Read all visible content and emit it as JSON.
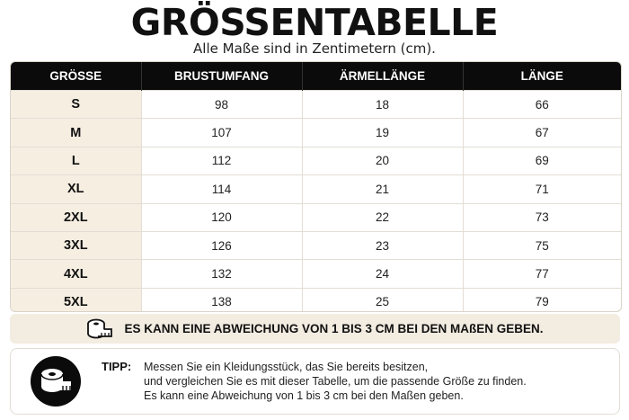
{
  "header": {
    "title": "GRÖSSENTABELLE",
    "subtitle": "Alle Maße sind in Zentimetern (cm)."
  },
  "table": {
    "columns": [
      "GRÖSSE",
      "BRUSTUMFANG",
      "ÄRMELLÄNGE",
      "LÄNGE"
    ],
    "rows": [
      [
        "S",
        "98",
        "18",
        "66"
      ],
      [
        "M",
        "107",
        "19",
        "67"
      ],
      [
        "L",
        "112",
        "20",
        "69"
      ],
      [
        "XL",
        "114",
        "21",
        "71"
      ],
      [
        "2XL",
        "120",
        "22",
        "73"
      ],
      [
        "3XL",
        "126",
        "23",
        "75"
      ],
      [
        "4XL",
        "132",
        "24",
        "77"
      ],
      [
        "5XL",
        "138",
        "25",
        "79"
      ]
    ]
  },
  "note": {
    "icon": "measuring-tape-icon",
    "text": "ES KANN EINE ABWEICHUNG VON 1 BIS 3 CM BEI DEN MAßEN GEBEN."
  },
  "tip": {
    "icon": "measuring-tape-icon",
    "label": "TIPP:",
    "lines": [
      "Messen Sie ein Kleidungsstück, das Sie bereits besitzen,",
      "und vergleichen Sie es mit dieser Tabelle, um die passende Größe zu finden.",
      "Es kann eine Abweichung von 1 bis 3 cm bei den Maßen geben."
    ]
  },
  "colors": {
    "header_bg": "#0b0b0b",
    "size_column_bg": "#f6eee1",
    "note_bg": "#f3ece1"
  }
}
